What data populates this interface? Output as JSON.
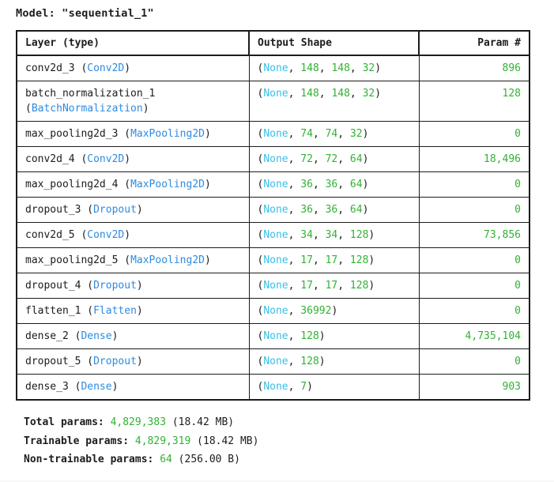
{
  "title": "Model: \"sequential_1\"",
  "table": {
    "headers": [
      "Layer (type)",
      "Output Shape",
      "Param #"
    ],
    "rows": [
      {
        "layer_name": "conv2d_3",
        "layer_type": "Conv2D",
        "output_shape": "(None, 148, 148, 32)",
        "params": "896"
      },
      {
        "layer_name": "batch_normalization_1",
        "layer_type": "BatchNormalization",
        "output_shape": "(None, 148, 148, 32)",
        "params": "128"
      },
      {
        "layer_name": "max_pooling2d_3",
        "layer_type": "MaxPooling2D",
        "output_shape": "(None, 74, 74, 32)",
        "params": "0"
      },
      {
        "layer_name": "conv2d_4",
        "layer_type": "Conv2D",
        "output_shape": "(None, 72, 72, 64)",
        "params": "18,496"
      },
      {
        "layer_name": "max_pooling2d_4",
        "layer_type": "MaxPooling2D",
        "output_shape": "(None, 36, 36, 64)",
        "params": "0"
      },
      {
        "layer_name": "dropout_3",
        "layer_type": "Dropout",
        "output_shape": "(None, 36, 36, 64)",
        "params": "0"
      },
      {
        "layer_name": "conv2d_5",
        "layer_type": "Conv2D",
        "output_shape": "(None, 34, 34, 128)",
        "params": "73,856"
      },
      {
        "layer_name": "max_pooling2d_5",
        "layer_type": "MaxPooling2D",
        "output_shape": "(None, 17, 17, 128)",
        "params": "0"
      },
      {
        "layer_name": "dropout_4",
        "layer_type": "Dropout",
        "output_shape": "(None, 17, 17, 128)",
        "params": "0"
      },
      {
        "layer_name": "flatten_1",
        "layer_type": "Flatten",
        "output_shape": "(None, 36992)",
        "params": "0"
      },
      {
        "layer_name": "dense_2",
        "layer_type": "Dense",
        "output_shape": "(None, 128)",
        "params": "4,735,104"
      },
      {
        "layer_name": "dropout_5",
        "layer_type": "Dropout",
        "output_shape": "(None, 128)",
        "params": "0"
      },
      {
        "layer_name": "dense_3",
        "layer_type": "Dense",
        "output_shape": "(None, 7)",
        "params": "903"
      }
    ]
  },
  "summary": {
    "lines": [
      {
        "label": "Total params:",
        "value": "4,829,383",
        "suffix": " (18.42 MB)"
      },
      {
        "label": "Trainable params:",
        "value": "4,829,319",
        "suffix": " (18.42 MB)"
      },
      {
        "label": "Non-trainable params:",
        "value": "64",
        "suffix": " (256.00 B)"
      }
    ]
  },
  "colors": {
    "layer_type_blue": "#2e8be0",
    "none_cyan": "#38bfe4",
    "number_green": "#31b232",
    "text_black": "#1c1c1c",
    "border": "#1c1c1c",
    "background": "#ffffff"
  }
}
